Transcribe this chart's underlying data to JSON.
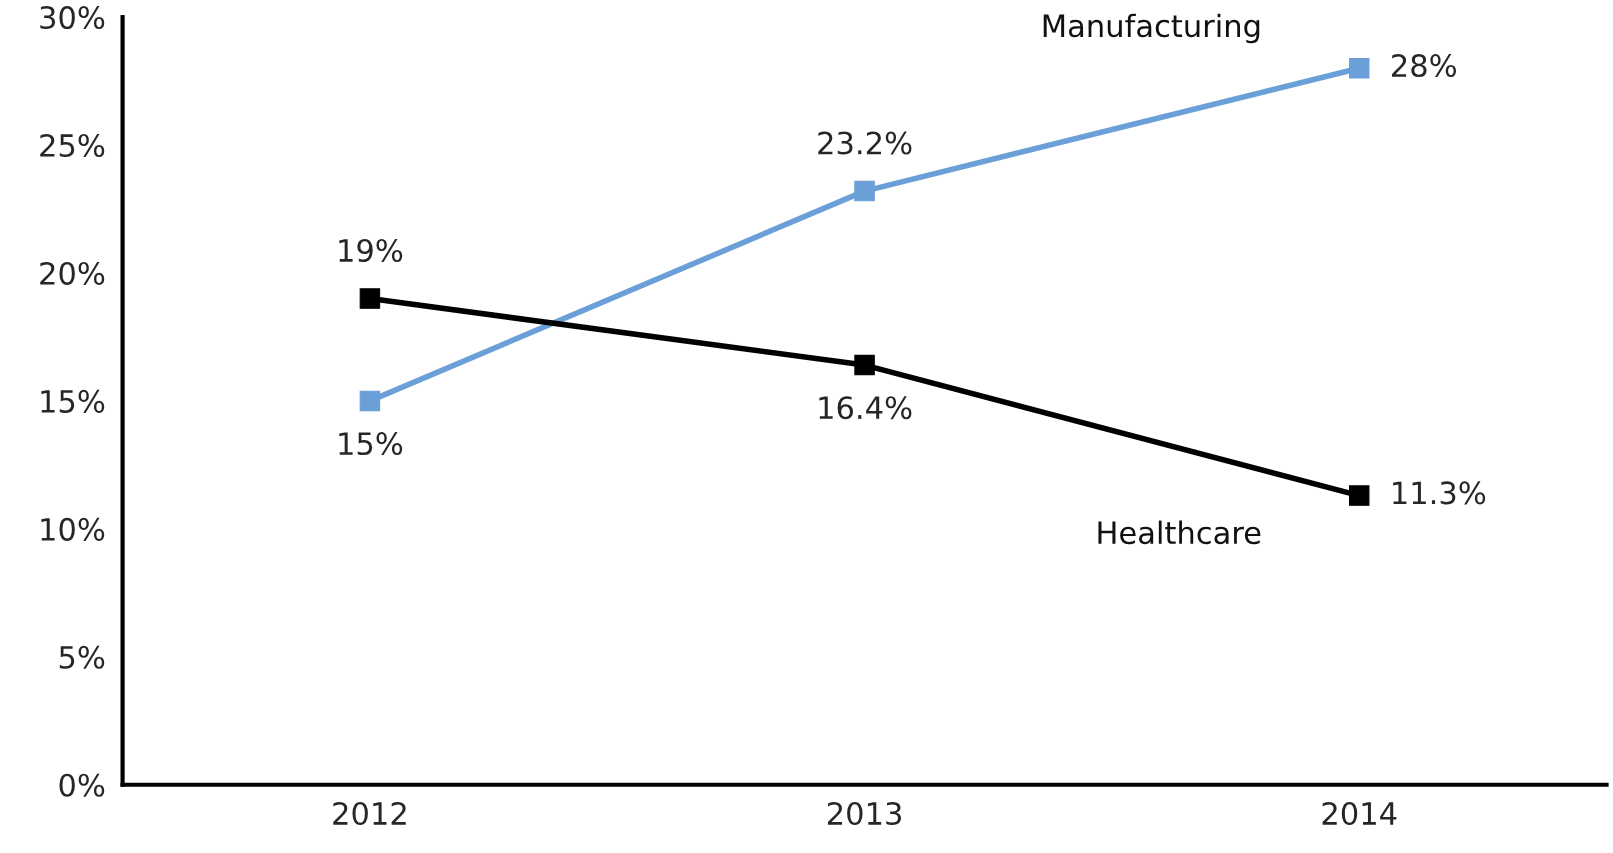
{
  "chart_data": {
    "type": "line",
    "categories": [
      "2012",
      "2013",
      "2014"
    ],
    "series": [
      {
        "name": "Manufacturing",
        "color": "#6a9fd8",
        "values": [
          15,
          23.2,
          28
        ],
        "value_labels": [
          "15%",
          "23.2%",
          "28%"
        ]
      },
      {
        "name": "Healthcare",
        "color": "#000000",
        "values": [
          19,
          16.4,
          11.3
        ],
        "value_labels": [
          "19%",
          "16.4%",
          "11.3%"
        ]
      }
    ],
    "ylim": [
      0,
      30
    ],
    "yticks": [
      {
        "value": 0,
        "label": "0%"
      },
      {
        "value": 5,
        "label": "5%"
      },
      {
        "value": 10,
        "label": "10%"
      },
      {
        "value": 15,
        "label": "15%"
      },
      {
        "value": 20,
        "label": "20%"
      },
      {
        "value": 25,
        "label": "25%"
      },
      {
        "value": 30,
        "label": "30%"
      }
    ],
    "marker": "square",
    "line_style": "solid",
    "grid": false
  }
}
